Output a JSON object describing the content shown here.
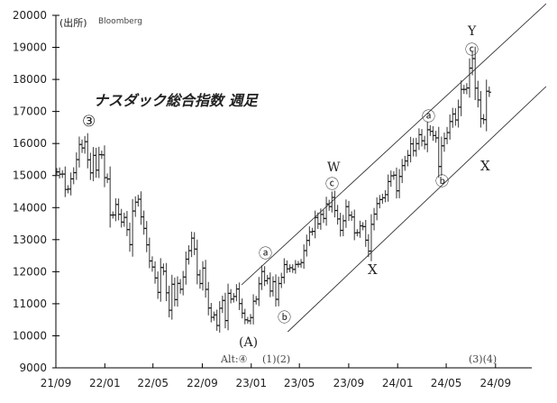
{
  "chart_data": {
    "type": "bar-ohlc",
    "title": "ナスダック総合指数 週足",
    "source_label": "(出所)",
    "source": "Bloomberg",
    "ylim": [
      9000,
      20000
    ],
    "yticks": [
      "20000",
      "19000",
      "18000",
      "17000",
      "16000",
      "15000",
      "14000",
      "13000",
      "12000",
      "11000",
      "10000",
      "9000"
    ],
    "xticks": [
      {
        "label": "21/09",
        "date": "2021-09-01"
      },
      {
        "label": "22/01",
        "date": "2022-01-01"
      },
      {
        "label": "22/05",
        "date": "2022-05-01"
      },
      {
        "label": "22/09",
        "date": "2022-09-01"
      },
      {
        "label": "23/01",
        "date": "2023-01-01"
      },
      {
        "label": "23/05",
        "date": "2023-05-01"
      },
      {
        "label": "23/09",
        "date": "2023-09-01"
      },
      {
        "label": "24/01",
        "date": "2024-01-01"
      },
      {
        "label": "24/05",
        "date": "2024-05-01"
      },
      {
        "label": "24/09",
        "date": "2024-09-01"
      }
    ],
    "first_week": "2021-09-10",
    "weekly_close": [
      15115,
      15044,
      15047,
      14566,
      14579,
      14897,
      15090,
      15498,
      15971,
      15860,
      16057,
      15491,
      15085,
      15630,
      15169,
      15653,
      15645,
      14935,
      14893,
      13768,
      13770,
      14098,
      13791,
      13548,
      13694,
      13313,
      12843,
      13893,
      14169,
      14261,
      13711,
      13351,
      12839,
      12335,
      12145,
      11805,
      11354,
      12131,
      12013,
      11340,
      10798,
      11608,
      11128,
      11635,
      11452,
      11834,
      12391,
      12657,
      13047,
      12706,
      11902,
      11631,
      12112,
      11448,
      10868,
      10576,
      10652,
      10321,
      10860,
      11103,
      10475,
      11324,
      11146,
      11226,
      11461,
      11005,
      10705,
      10498,
      10466,
      10569,
      11079,
      11140,
      11622,
      12007,
      11718,
      11788,
      11395,
      11689,
      11138,
      11631,
      11824,
      12222,
      12088,
      12124,
      12073,
      12227,
      12235,
      12285,
      12658,
      12976,
      13241,
      13259,
      13690,
      13492,
      13788,
      13661,
      14113,
      14032,
      14317,
      13909,
      13645,
      13290,
      13590,
      14031,
      13762,
      13708,
      13212,
      13219,
      13431,
      13407,
      12984,
      12643,
      13478,
      13798,
      14125,
      14250,
      14305,
      14404,
      14813,
      14992,
      15011,
      14524,
      14972,
      15311,
      15455,
      15629,
      15990,
      15776,
      15997,
      16275,
      16085,
      15973,
      16429,
      16379,
      16249,
      16175,
      15282,
      15928,
      16156,
      16341,
      16686,
      16921,
      16735,
      17133,
      17689,
      17689,
      17733,
      18353,
      18650,
      17727,
      17358,
      16776,
      16745,
      17631,
      17600
    ],
    "channel_lines": [
      {
        "from": {
          "date": "2022-12-08",
          "value": 11590
        },
        "to": {
          "date": "2025-01-05",
          "value": 20360
        }
      },
      {
        "from": {
          "date": "2023-04-02",
          "value": 10125
        },
        "to": {
          "date": "2025-01-05",
          "value": 17780
        }
      }
    ],
    "annotations": {
      "wave3": "③",
      "w_label": "W",
      "w_c": "ⓒ",
      "a1": "ⓐ",
      "b1": "ⓑ",
      "A": "(A)",
      "alt": "Alt:④",
      "p12": "(1)(2)",
      "x1": "X",
      "a2": "ⓐ",
      "b2": "ⓑ",
      "x2": "X",
      "y_label": "Y",
      "y_c": "ⓒ",
      "p34": "(3)(4)"
    }
  }
}
